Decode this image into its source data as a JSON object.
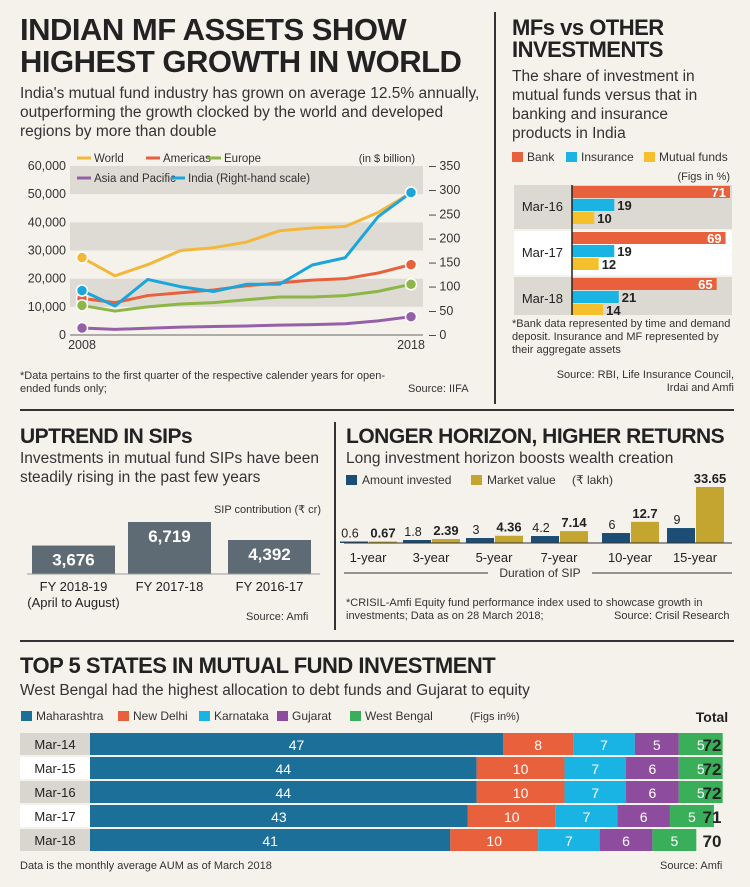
{
  "colors": {
    "bg": "#f5f2ec",
    "world": "#f3b73a",
    "americas": "#e8603c",
    "europe": "#8cb645",
    "asia": "#9560a8",
    "india": "#1aa5dd",
    "bank": "#e8603c",
    "insurance": "#1ab4e4",
    "mf": "#f5c02c",
    "navy": "#1c4e75",
    "gold": "#c3a530",
    "sip_bar": "#5f6b74",
    "maharashtra": "#1b6f98",
    "new_delhi": "#e8603c",
    "karnataka": "#1ab4e4",
    "gujarat": "#8e4c9e",
    "west_bengal": "#3aaf5a",
    "band": "#d9d6d0"
  },
  "panel1": {
    "title_l1": "INDIAN MF ASSETS SHOW",
    "title_l2": "HIGHEST GROWTH IN WORLD",
    "subtitle": "India's mutual fund industry has grown on average 12.5% annually, outperforming the growth clocked by the world and developed regions by more than double",
    "footnote": "*Data pertains to the first quarter of the respective calender years for open-ended funds only;",
    "source": "Source: IIFA"
  },
  "panel2": {
    "title_l1": "MFs vs OTHER",
    "title_l2": "INVESTMENTS",
    "subtitle": "The share of investment in mutual funds versus that in banking and insurance products in India",
    "footnote": "*Bank data represented by time and demand deposit. Insurance and MF represented by their aggregate assets",
    "source": "Source: RBI, Life Insurance Council, Irdai and Amfi"
  },
  "panel3": {
    "title": "UPTREND IN SIPs",
    "subtitle": "Investments in mutual fund SIPs have been steadily rising in the past few years",
    "source": "Source: Amfi"
  },
  "panel4": {
    "title": "LONGER HORIZON, HIGHER RETURNS",
    "subtitle": "Long investment horizon boosts wealth creation",
    "footnote": "*CRISIL-Amfi Equity fund performance index used to showcase growth in investments; Data as on 28 March 2018;",
    "source": "Source: Crisil Research"
  },
  "panel5": {
    "title": "TOP 5 STATES IN MUTUAL FUND INVESTMENT",
    "subtitle": "West Bengal had the highest allocation to debt funds and Gujarat to equity",
    "footnote": "Data is the monthly average AUM as of March 2018",
    "source": "Source: Amfi"
  },
  "chart_data": [
    {
      "type": "line",
      "unit_note": "(in $ billion)",
      "x": [
        2008,
        2009,
        2010,
        2011,
        2012,
        2013,
        2014,
        2015,
        2016,
        2017,
        2018
      ],
      "x_tick_labels": [
        "2008",
        "2018"
      ],
      "left_axis": {
        "ylim": [
          0,
          60000
        ],
        "ticks": [
          "0",
          "10,000",
          "20,000",
          "30,000",
          "40,000",
          "50,000",
          "60,000"
        ]
      },
      "right_axis": {
        "ylim": [
          0,
          350
        ],
        "ticks": [
          "0",
          "50",
          "100",
          "150",
          "200",
          "250",
          "300",
          "350"
        ]
      },
      "series": [
        {
          "name": "World",
          "color": "#f3b73a",
          "axis": "left",
          "values": [
            27500,
            21000,
            25000,
            30000,
            31000,
            33000,
            37000,
            38000,
            38500,
            43500,
            50500
          ]
        },
        {
          "name": "Americas",
          "color": "#e8603c",
          "axis": "left",
          "values": [
            13000,
            11500,
            14000,
            15000,
            16000,
            17500,
            18500,
            19500,
            20000,
            22000,
            25000
          ]
        },
        {
          "name": "Europe",
          "color": "#8cb645",
          "axis": "left",
          "values": [
            10500,
            8500,
            10000,
            11000,
            11500,
            12500,
            13500,
            13500,
            14000,
            15500,
            18000
          ]
        },
        {
          "name": "Asia and Pacific",
          "color": "#9560a8",
          "axis": "left",
          "values": [
            2500,
            2000,
            2400,
            2800,
            3000,
            3200,
            3500,
            3700,
            4000,
            5000,
            6500
          ]
        },
        {
          "name": "India (Right-hand scale)",
          "color": "#1aa5dd",
          "axis": "right",
          "values": [
            92,
            60,
            115,
            100,
            90,
            105,
            105,
            145,
            160,
            245,
            295
          ]
        }
      ]
    },
    {
      "type": "bar",
      "orientation": "horizontal",
      "unit_note": "(Figs in %)",
      "categories": [
        "Mar-16",
        "Mar-17",
        "Mar-18"
      ],
      "series": [
        {
          "name": "Bank",
          "color": "#e8603c",
          "values": [
            71,
            69,
            65
          ]
        },
        {
          "name": "Insurance",
          "color": "#1ab4e4",
          "values": [
            19,
            19,
            21
          ]
        },
        {
          "name": "Mutual funds",
          "color": "#f5c02c",
          "values": [
            10,
            12,
            14
          ]
        }
      ]
    },
    {
      "type": "bar",
      "title": "SIP contribution (₹ cr)",
      "categories": [
        "FY 2018-19",
        "FY 2017-18",
        "FY 2016-17"
      ],
      "category_notes": [
        "(April to August)",
        "",
        ""
      ],
      "values": [
        3676,
        6719,
        4392
      ],
      "value_labels": [
        "3,676",
        "6,719",
        "4,392"
      ]
    },
    {
      "type": "bar",
      "unit_note": "(₹ lakh)",
      "xlabel": "Duration of SIP",
      "categories": [
        "1-year",
        "3-year",
        "5-year",
        "7-year",
        "10-year",
        "15-year"
      ],
      "series": [
        {
          "name": "Amount invested",
          "color": "#1c4e75",
          "values": [
            0.6,
            1.8,
            3,
            4.2,
            6,
            9
          ],
          "labels": [
            "0.6",
            "1.8",
            "3",
            "4.2",
            "6",
            "9"
          ]
        },
        {
          "name": "Market value",
          "color": "#c3a530",
          "values": [
            0.67,
            2.39,
            4.36,
            7.14,
            12.7,
            33.65
          ],
          "labels": [
            "0.67",
            "2.39",
            "4.36",
            "7.14",
            "12.7",
            "33.65"
          ]
        }
      ]
    },
    {
      "type": "bar",
      "orientation": "horizontal",
      "stacked": true,
      "unit_note": "(Figs in%)",
      "total_label": "Total",
      "categories": [
        "Mar-14",
        "Mar-15",
        "Mar-16",
        "Mar-17",
        "Mar-18"
      ],
      "totals": [
        72,
        72,
        72,
        71,
        70
      ],
      "series": [
        {
          "name": "Maharashtra",
          "color": "#1b6f98",
          "values": [
            47,
            44,
            44,
            43,
            41
          ]
        },
        {
          "name": "New Delhi",
          "color": "#e8603c",
          "values": [
            8,
            10,
            10,
            10,
            10
          ]
        },
        {
          "name": "Karnataka",
          "color": "#1ab4e4",
          "values": [
            7,
            7,
            7,
            7,
            7
          ]
        },
        {
          "name": "Gujarat",
          "color": "#8e4c9e",
          "values": [
            5,
            6,
            6,
            6,
            6
          ]
        },
        {
          "name": "West Bengal",
          "color": "#3aaf5a",
          "values": [
            5,
            5,
            5,
            5,
            5
          ]
        }
      ]
    }
  ]
}
